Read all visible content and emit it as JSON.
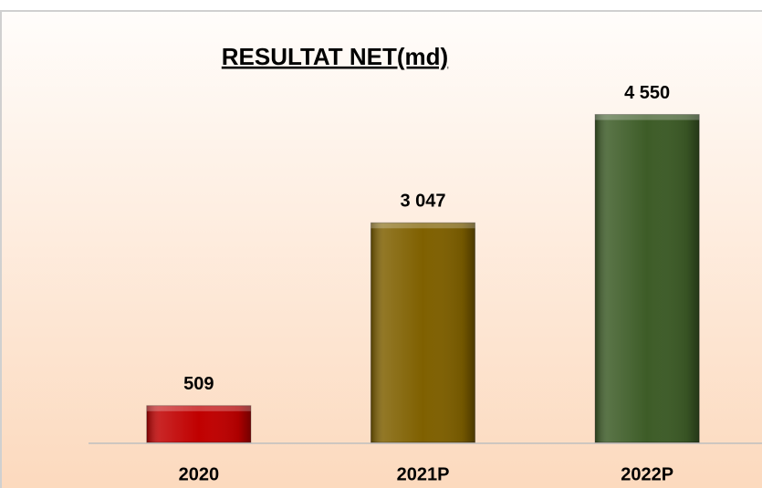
{
  "chart_data": {
    "type": "bar",
    "title": "RESULTAT NET(md)",
    "categories": [
      "2020",
      "2021P",
      "2022P"
    ],
    "values": [
      509,
      3047,
      4550
    ],
    "value_labels": [
      "509",
      "3 047",
      "4 550"
    ],
    "colors": [
      "#c00000",
      "#7f6000",
      "#3d5c27"
    ],
    "ylim": [
      0,
      5000
    ]
  }
}
